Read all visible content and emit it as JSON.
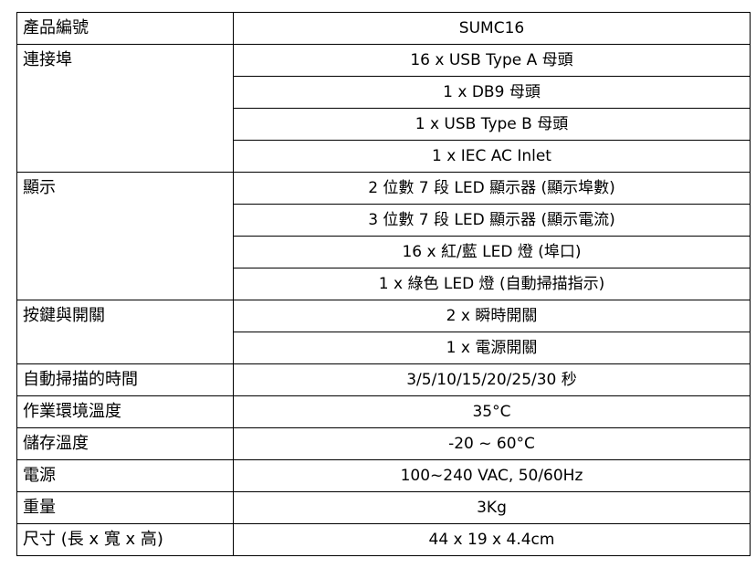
{
  "rows": [
    {
      "label": "產品編號",
      "values": [
        "SUMC16"
      ]
    },
    {
      "label": "連接埠",
      "values": [
        "16 x USB Type A 母頭",
        "1 x DB9  母頭",
        "1 x USB Type B 母頭",
        "1 x IEC AC Inlet"
      ]
    },
    {
      "label": "顯示",
      "values": [
        "2 位數  7  段 LED 顯示器  (顯示埠數)",
        "3 位數  7 段 LED 顯示器  (顯示電流)",
        "16 x  紅/藍 LED 燈  (埠口)",
        "1 x  綠色 LED 燈  (自動掃描指示)"
      ]
    },
    {
      "label": "按鍵與開關",
      "values": [
        "2 x  瞬時開關",
        "1 x  電源開關"
      ]
    },
    {
      "label": "自動掃描的時間",
      "values": [
        "3/5/10/15/20/25/30  秒"
      ]
    },
    {
      "label": "作業環境溫度",
      "values": [
        "35°C"
      ]
    },
    {
      "label": "儲存溫度",
      "values": [
        "-20 ~ 60°C"
      ]
    },
    {
      "label": "電源",
      "values": [
        "100~240 VAC, 50/60Hz"
      ]
    },
    {
      "label": "重量",
      "values": [
        "3Kg"
      ]
    },
    {
      "label": "尺寸 (長 x 寬 x 高)",
      "values": [
        "44 x 19 x 4.4cm"
      ]
    }
  ]
}
